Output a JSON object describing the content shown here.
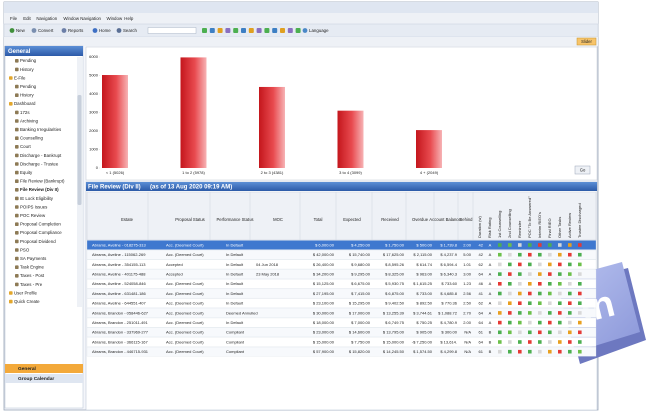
{
  "window": {
    "menu": [
      "File",
      "Edit",
      "Navigation",
      "Window Navigation",
      "Window",
      "Help"
    ],
    "toolbar": [
      "New",
      "Convert",
      "Reports",
      "Home",
      "Search",
      "Language"
    ],
    "slider_button": "Slider"
  },
  "sidebar": {
    "header": "General",
    "items": [
      "Pending",
      "History",
      "E-File",
      "Pending",
      "History",
      "Dashboard",
      "172s",
      "Archiving",
      "Banking Irregularities",
      "Counselling",
      "Court",
      "Discharge - Bankrupt",
      "Discharge - Trustee",
      "Equity",
      "File Review (Bankrupt)",
      "File Review (Div II)",
      "IE Lock Eligibility",
      "POIPS Issues",
      "POC Review",
      "Proposal Completion",
      "Proposal Compliance",
      "Proposal Dividend",
      "PSO",
      "SA Payments",
      "Task Engine",
      "Taxes - Post",
      "Taxes - Pre",
      "User Profile",
      "Quick Create"
    ],
    "footer": [
      "General",
      "Group Calendar"
    ]
  },
  "chart": {
    "type": "bar",
    "categories": [
      "< 1 (5026)",
      "1 to 2 (5978)",
      "2 to 3 (4381)",
      "3 to 4 (3099)",
      "4 + (2049)"
    ],
    "values": [
      5026,
      5978,
      4381,
      3099,
      2049
    ],
    "ylim": [
      0,
      6000
    ],
    "yticks": [
      0,
      1000,
      2000,
      3000,
      4000,
      5000,
      6000
    ],
    "button": "Go"
  },
  "panel": {
    "title": "File Review (Div II)",
    "subtitle": "(as of 13 Aug 2020 09:19 AM)"
  },
  "table": {
    "columns": [
      "Estate",
      "Proposal Status",
      "Performance Status",
      "MOC",
      "Total",
      "Expected",
      "Received",
      "Overdue",
      "Account Balance",
      "Behind"
    ],
    "vertical_columns": [
      "Duration (w)",
      "Risk Rating",
      "1st Counselling",
      "2nd Counselling",
      "Reminder",
      "POC \"To Be Answered\"",
      "Interim RIEO's",
      "Final RIEO",
      "Other Tasks",
      "Active Review",
      "Trustee Discharged"
    ],
    "rows": [
      [
        "Abrams, Aveline - 018275-313",
        "Acc. (Deemed Court)",
        "In Default",
        null,
        "$ 6,000.00",
        "$ 4,250.00",
        "$ 1,750.00",
        "$ 500.00",
        "$ 1,739.8",
        "2.00",
        "42",
        "A"
      ],
      [
        "Abrams, Aveline - 115062-269",
        "Acc. (Deemed Court)",
        "In Default",
        null,
        "$ 42,000.00",
        "$ 15,740.00",
        "$ 17,625.00",
        "$ 2,115.00",
        "$ 4,237.9",
        "5.00",
        "42",
        "A"
      ],
      [
        "Abrams, Aveline - 354155-113",
        "Accepted",
        "In Default",
        "04 Jun 2018",
        "$ 26,400.00",
        "$ 9,680.00",
        "$ 8,595.26",
        "$ 614.74",
        "$ 6,594.4",
        "1.01",
        "62",
        "A"
      ],
      [
        "Abrams, Aveline - 401175-488",
        "Accepted",
        "In Default",
        "23 May 2018",
        "$ 34,200.00",
        "$ 9,295.00",
        "$ 8,325.00",
        "$ 963.00",
        "$ 6,340.3",
        "3.00",
        "64",
        "A"
      ],
      [
        "Abrams, Aveline - 524058-846",
        "Acc. (Deemed Court)",
        "In Default",
        null,
        "$ 15,125.00",
        "$ 6,675.00",
        "$ 5,930.75",
        "$ 1,615.25",
        "$ 733.60",
        "1.23",
        "46",
        "A"
      ],
      [
        "Abrams, Aveline - 631481-186",
        "Acc. (Deemed Court)",
        "In Default",
        null,
        "$ 27,195.00",
        "$ 7,415.00",
        "$ 6,875.00",
        "$ 733.00",
        "$ 4,685.8",
        "2.56",
        "41",
        "A"
      ],
      [
        "Abrams, Aveline - 644551-407",
        "Acc. (Deemed Court)",
        "In Default",
        null,
        "$ 23,100.00",
        "$ 15,295.00",
        "$ 9,402.50",
        "$ 892.50",
        "$ 770.36",
        "2.50",
        "62",
        "A"
      ],
      [
        "Abrams, Brandon - 058446-627",
        "Acc. (Deemed Court)",
        "Deemed Annulled",
        null,
        "$ 30,000.00",
        "$ 17,000.00",
        "$ 13,255.39",
        "$ 3,744.61",
        "$ 1,088.72",
        "2.70",
        "64",
        "A"
      ],
      [
        "Abrams, Brandon - 251011-491",
        "Acc. (Deemed Court)",
        "In Default",
        null,
        "$ 18,000.00",
        "$ 7,000.00",
        "$ 6,749.75",
        "$ 750.25",
        "$ 4,780.9",
        "2.00",
        "64",
        "A"
      ],
      [
        "Abrams, Brandon - 337969-277",
        "Acc. (Deemed Court)",
        "Compliant",
        null,
        "$ 23,000.00",
        "$ 14,600.00",
        "$ 13,795.00",
        "$ 905.00",
        "$ 300.00",
        "N/A",
        "61",
        "B"
      ],
      [
        "Abrams, Brandon - 366115-167",
        "Acc. (Deemed Court)",
        "Compliant",
        null,
        "$ 15,000.00",
        "$ 7,750.00",
        "$ 15,000.00",
        "-$ 7,250.00",
        "$ 13,614.",
        "N/A",
        "64",
        "B"
      ],
      [
        "Abrams, Brandon - 446715-931",
        "Acc. (Deemed Court)",
        "Compliant",
        null,
        "$ 57,900.00",
        "$ 15,820.00",
        "$ 14,245.50",
        "$ 1,574.50",
        "$ 4,299.8",
        "N/A",
        "61",
        "B"
      ]
    ]
  },
  "badge": {
    "label": "in"
  }
}
